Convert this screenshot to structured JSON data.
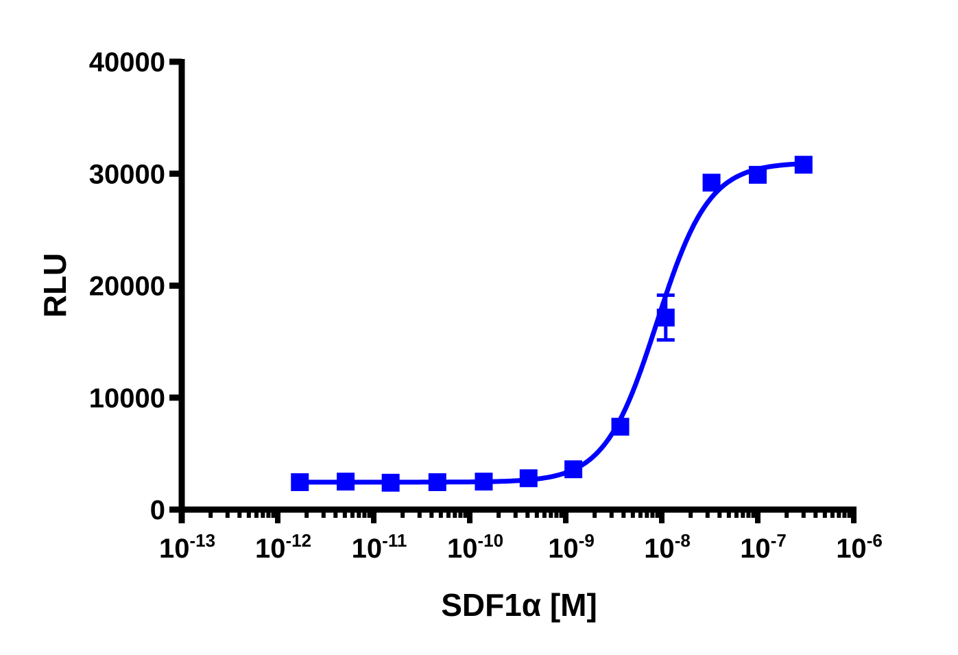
{
  "chart_data": {
    "type": "scatter",
    "title": "",
    "xlabel": "SDF1α  [M]",
    "ylabel": "RLU",
    "xscale": "log",
    "xlim": [
      1e-13,
      1e-06
    ],
    "ylim": [
      0,
      40000
    ],
    "x_ticks": [
      {
        "base": "10",
        "exp": "-13"
      },
      {
        "base": "10",
        "exp": "-12"
      },
      {
        "base": "10",
        "exp": "-11"
      },
      {
        "base": "10",
        "exp": "-10"
      },
      {
        "base": "10",
        "exp": "-9"
      },
      {
        "base": "10",
        "exp": "-8"
      },
      {
        "base": "10",
        "exp": "-7"
      },
      {
        "base": "10",
        "exp": "-6"
      }
    ],
    "y_ticks": [
      "0",
      "10000",
      "20000",
      "30000",
      "40000"
    ],
    "grid": false,
    "legend": null,
    "color": "#0000ff",
    "series": [
      {
        "name": "SDF1α",
        "marker": "square",
        "fit": "sigmoidal dose-response",
        "x": [
          1.7e-12,
          5.1e-12,
          1.5e-11,
          4.6e-11,
          1.4e-10,
          4.1e-10,
          1.2e-09,
          3.7e-09,
          1.1e-08,
          3.3e-08,
          1e-07,
          3e-07
        ],
        "y": [
          2450,
          2500,
          2400,
          2450,
          2500,
          2800,
          3600,
          7400,
          17150,
          29200,
          29900,
          30800
        ],
        "error": [
          100,
          100,
          100,
          100,
          100,
          150,
          200,
          300,
          2000,
          400,
          200,
          150
        ]
      }
    ],
    "fit_params": {
      "bottom": 2450,
      "top": 31000,
      "log_ec50": -8.05,
      "hill_slope": 1.6
    }
  }
}
